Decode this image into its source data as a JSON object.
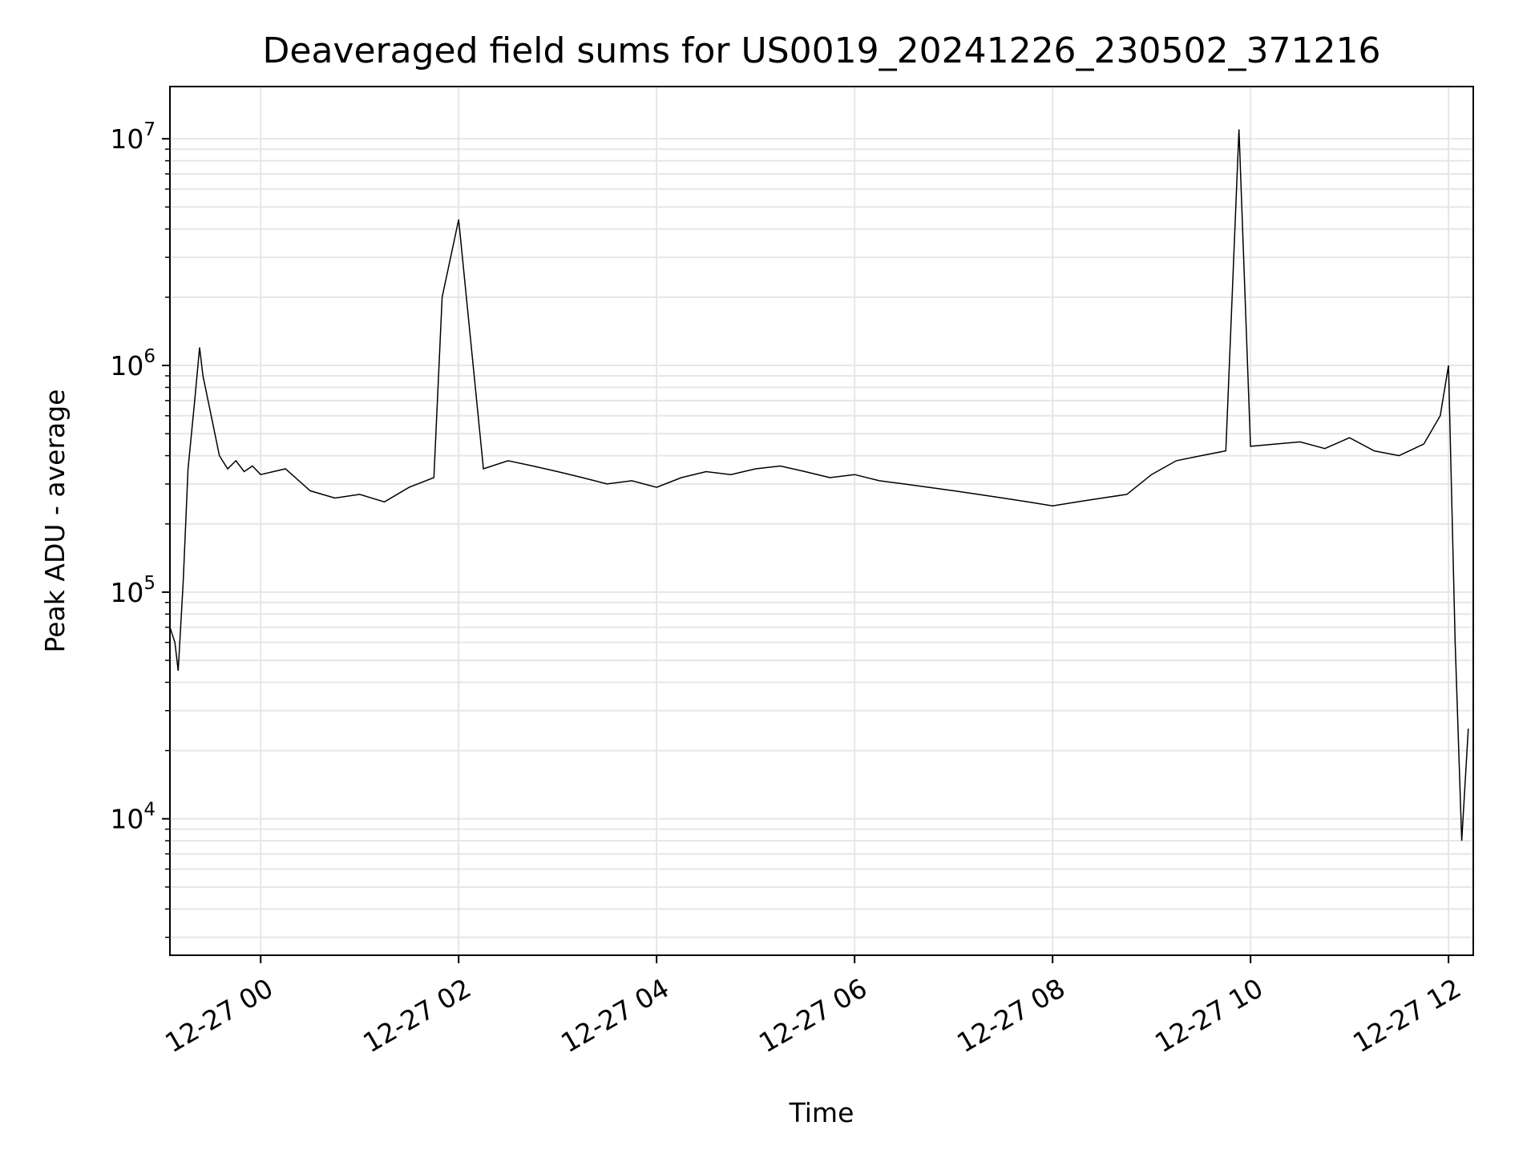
{
  "chart_data": {
    "type": "line",
    "title": "Deaveraged field sums for US0019_20241226_230502_371216",
    "xlabel": "Time",
    "ylabel": "Peak ADU - average",
    "yscale": "log",
    "ylim": [
      2500,
      17000000
    ],
    "xlim": [
      "2024-12-26 23:05",
      "2024-12-27 12:15"
    ],
    "grid": true,
    "colors": {
      "line": "#000000",
      "grid": "#e6e6e6",
      "axes": "#000000"
    },
    "x_ticks": [
      {
        "value": "2024-12-27 00:00",
        "label": "12-27 00"
      },
      {
        "value": "2024-12-27 02:00",
        "label": "12-27 02"
      },
      {
        "value": "2024-12-27 04:00",
        "label": "12-27 04"
      },
      {
        "value": "2024-12-27 06:00",
        "label": "12-27 06"
      },
      {
        "value": "2024-12-27 08:00",
        "label": "12-27 08"
      },
      {
        "value": "2024-12-27 10:00",
        "label": "12-27 10"
      },
      {
        "value": "2024-12-27 12:00",
        "label": "12-27 12"
      }
    ],
    "y_ticks": [
      {
        "value": 10000,
        "base": "10",
        "exp": "4"
      },
      {
        "value": 100000,
        "base": "10",
        "exp": "5"
      },
      {
        "value": 1000000,
        "base": "10",
        "exp": "6"
      },
      {
        "value": 10000000,
        "base": "10",
        "exp": "7"
      }
    ],
    "series": [
      {
        "x": [
          "2024-12-26 23:05",
          "2024-12-26 23:08",
          "2024-12-26 23:10",
          "2024-12-26 23:13",
          "2024-12-26 23:16",
          "2024-12-26 23:20",
          "2024-12-26 23:23",
          "2024-12-26 23:25",
          "2024-12-26 23:30",
          "2024-12-26 23:35",
          "2024-12-26 23:40",
          "2024-12-26 23:45",
          "2024-12-26 23:50",
          "2024-12-26 23:55",
          "2024-12-27 00:00",
          "2024-12-27 00:15",
          "2024-12-27 00:30",
          "2024-12-27 00:45",
          "2024-12-27 01:00",
          "2024-12-27 01:15",
          "2024-12-27 01:30",
          "2024-12-27 01:45",
          "2024-12-27 01:50",
          "2024-12-27 02:00",
          "2024-12-27 02:15",
          "2024-12-27 02:30",
          "2024-12-27 02:45",
          "2024-12-27 03:00",
          "2024-12-27 03:15",
          "2024-12-27 03:30",
          "2024-12-27 03:45",
          "2024-12-27 04:00",
          "2024-12-27 04:15",
          "2024-12-27 04:30",
          "2024-12-27 04:45",
          "2024-12-27 05:00",
          "2024-12-27 05:15",
          "2024-12-27 05:30",
          "2024-12-27 05:45",
          "2024-12-27 06:00",
          "2024-12-27 06:15",
          "2024-12-27 06:30",
          "2024-12-27 06:45",
          "2024-12-27 07:00",
          "2024-12-27 07:15",
          "2024-12-27 07:30",
          "2024-12-27 07:45",
          "2024-12-27 08:00",
          "2024-12-27 08:15",
          "2024-12-27 08:30",
          "2024-12-27 08:45",
          "2024-12-27 09:00",
          "2024-12-27 09:15",
          "2024-12-27 09:30",
          "2024-12-27 09:45",
          "2024-12-27 09:53",
          "2024-12-27 10:00",
          "2024-12-27 10:15",
          "2024-12-27 10:30",
          "2024-12-27 10:45",
          "2024-12-27 11:00",
          "2024-12-27 11:15",
          "2024-12-27 11:30",
          "2024-12-27 11:45",
          "2024-12-27 11:55",
          "2024-12-27 12:00",
          "2024-12-27 12:04",
          "2024-12-27 12:08",
          "2024-12-27 12:12"
        ],
        "y": [
          70000,
          60000,
          45000,
          110000,
          350000,
          700000,
          1200000,
          900000,
          600000,
          400000,
          350000,
          380000,
          340000,
          360000,
          330000,
          350000,
          280000,
          260000,
          270000,
          250000,
          290000,
          320000,
          2000000,
          4400000,
          350000,
          380000,
          360000,
          340000,
          320000,
          300000,
          310000,
          290000,
          320000,
          340000,
          330000,
          350000,
          360000,
          340000,
          320000,
          330000,
          310000,
          300000,
          290000,
          280000,
          270000,
          260000,
          250000,
          240000,
          250000,
          260000,
          270000,
          330000,
          380000,
          400000,
          420000,
          11000000,
          440000,
          450000,
          460000,
          430000,
          480000,
          420000,
          400000,
          450000,
          600000,
          1000000,
          60000,
          8000,
          25000
        ]
      }
    ]
  }
}
